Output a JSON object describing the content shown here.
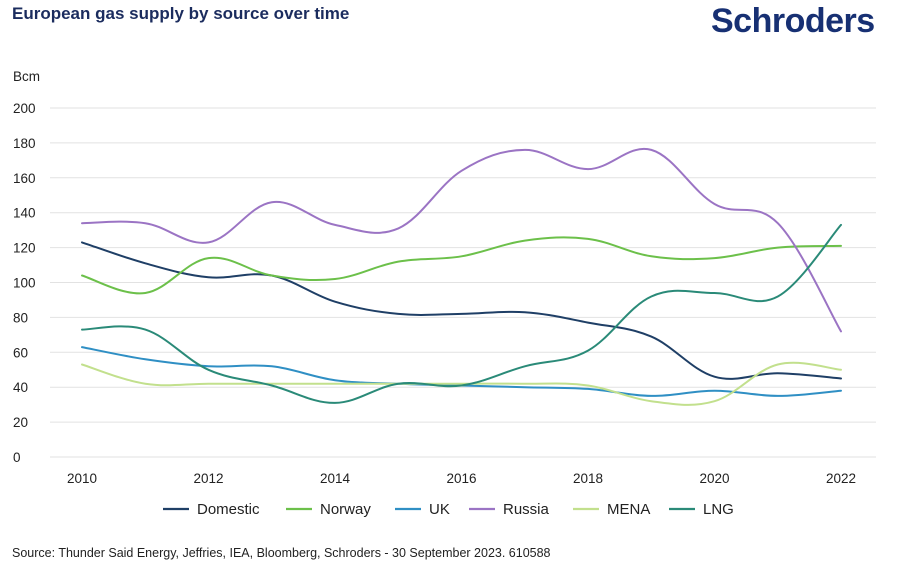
{
  "title": "European gas supply by source over time",
  "brand": "Schroders",
  "source": "Source: Thunder Said Energy, Jeffries, IEA, Bloomberg, Schroders - 30 September 2023. 610588",
  "chart_data": {
    "type": "line",
    "ylabel": "Bcm",
    "ylim": [
      0,
      200
    ],
    "yticks": [
      "0",
      "20",
      "40",
      "60",
      "80",
      "100",
      "120",
      "140",
      "160",
      "180",
      "200"
    ],
    "xlim": [
      2010,
      2022
    ],
    "xticks": [
      "2010",
      "2012",
      "2014",
      "2016",
      "2018",
      "2020",
      "2022"
    ],
    "grid": "horizontal",
    "legend": "bottom",
    "x": [
      2010,
      2011,
      2012,
      2013,
      2014,
      2015,
      2016,
      2017,
      2018,
      2019,
      2020,
      2021,
      2022
    ],
    "series": [
      {
        "name": "Domestic",
        "color": "#1f3f66",
        "values": [
          123,
          111,
          103,
          104,
          89,
          82,
          82,
          83,
          77,
          69,
          46,
          48,
          45
        ]
      },
      {
        "name": "Norway",
        "color": "#6cc04a",
        "values": [
          104,
          94,
          114,
          104,
          102,
          112,
          115,
          124,
          125,
          115,
          114,
          120,
          121
        ]
      },
      {
        "name": "UK",
        "color": "#2f8fc4",
        "values": [
          63,
          56,
          52,
          52,
          44,
          42,
          41,
          40,
          39,
          35,
          38,
          35,
          38
        ]
      },
      {
        "name": "Russia",
        "color": "#9b74c4",
        "values": [
          134,
          134,
          123,
          146,
          133,
          131,
          164,
          176,
          165,
          176,
          145,
          134,
          72
        ]
      },
      {
        "name": "MENA",
        "color": "#c2e08d",
        "values": [
          53,
          42,
          42,
          42,
          42,
          42,
          42,
          42,
          41,
          32,
          32,
          53,
          50
        ]
      },
      {
        "name": "LNG",
        "color": "#2a8a78",
        "values": [
          73,
          73,
          50,
          41,
          31,
          42,
          41,
          52,
          61,
          92,
          94,
          92,
          133
        ]
      }
    ]
  }
}
